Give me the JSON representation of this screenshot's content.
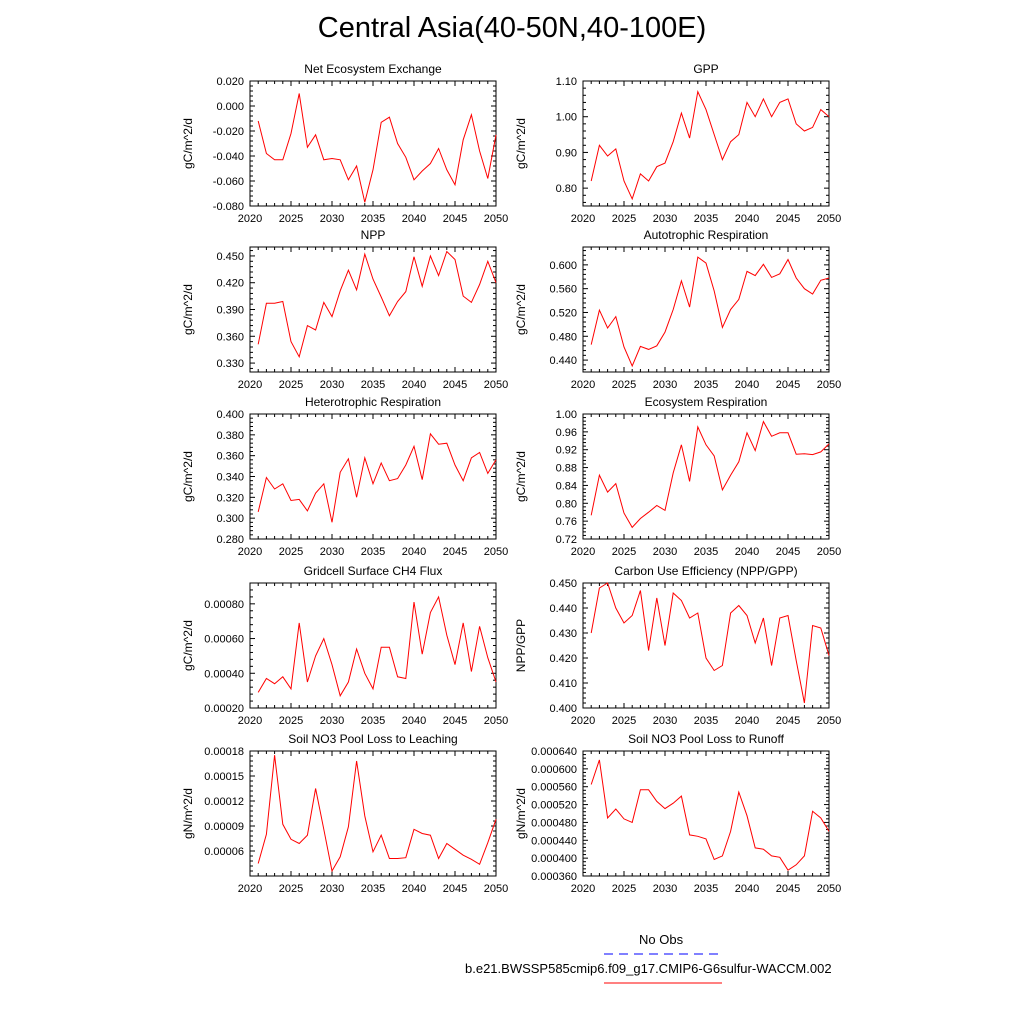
{
  "title": "Central Asia(40-50N,40-100E)",
  "line_color": "#ff0000",
  "obs_color": "#0000ff",
  "legend": {
    "obs_label": "No Obs",
    "model_label": "b.e21.BWSSP585cmip6.f09_g17.CMIP6-G6sulfur-WACCM.002"
  },
  "chart_data": [
    {
      "type": "line",
      "title": "Net Ecosystem Exchange",
      "ylabel": "gC/m^2/d",
      "xlim": [
        2020,
        2050
      ],
      "x_ticks": [
        "2020",
        "2025",
        "2030",
        "2035",
        "2040",
        "2045",
        "2050"
      ],
      "ylim": [
        -0.08,
        0.02
      ],
      "y_ticks": [
        "-0.080",
        "-0.060",
        "-0.040",
        "-0.020",
        "0.000",
        "0.020"
      ],
      "x": [
        2021,
        2022,
        2023,
        2024,
        2025,
        2026,
        2027,
        2028,
        2029,
        2030,
        2031,
        2032,
        2033,
        2034,
        2035,
        2036,
        2037,
        2038,
        2039,
        2040,
        2041,
        2042,
        2043,
        2044,
        2045,
        2046,
        2047,
        2048,
        2049,
        2050
      ],
      "values": [
        -0.012,
        -0.038,
        -0.043,
        -0.043,
        -0.022,
        0.01,
        -0.033,
        -0.023,
        -0.043,
        -0.042,
        -0.043,
        -0.059,
        -0.048,
        -0.077,
        -0.051,
        -0.013,
        -0.009,
        -0.03,
        -0.041,
        -0.059,
        -0.052,
        -0.046,
        -0.034,
        -0.051,
        -0.063,
        -0.027,
        -0.007,
        -0.036,
        -0.058,
        -0.023
      ]
    },
    {
      "type": "line",
      "title": "GPP",
      "ylabel": "gC/m^2/d",
      "xlim": [
        2020,
        2050
      ],
      "x_ticks": [
        "2020",
        "2025",
        "2030",
        "2035",
        "2040",
        "2045",
        "2050"
      ],
      "ylim": [
        0.75,
        1.1
      ],
      "y_ticks": [
        "0.80",
        "0.90",
        "1.00",
        "1.10"
      ],
      "x": [
        2021,
        2022,
        2023,
        2024,
        2025,
        2026,
        2027,
        2028,
        2029,
        2030,
        2031,
        2032,
        2033,
        2034,
        2035,
        2036,
        2037,
        2038,
        2039,
        2040,
        2041,
        2042,
        2043,
        2044,
        2045,
        2046,
        2047,
        2048,
        2049,
        2050
      ],
      "values": [
        0.82,
        0.92,
        0.89,
        0.91,
        0.82,
        0.77,
        0.84,
        0.82,
        0.86,
        0.87,
        0.93,
        1.01,
        0.94,
        1.07,
        1.02,
        0.95,
        0.88,
        0.93,
        0.95,
        1.04,
        1.0,
        1.05,
        1.0,
        1.04,
        1.05,
        0.98,
        0.96,
        0.97,
        1.02,
        1.0
      ]
    },
    {
      "type": "line",
      "title": "NPP",
      "ylabel": "gC/m^2/d",
      "xlim": [
        2020,
        2050
      ],
      "x_ticks": [
        "2020",
        "2025",
        "2030",
        "2035",
        "2040",
        "2045",
        "2050"
      ],
      "ylim": [
        0.32,
        0.46
      ],
      "y_ticks": [
        "0.330",
        "0.360",
        "0.390",
        "0.420",
        "0.450"
      ],
      "x": [
        2021,
        2022,
        2023,
        2024,
        2025,
        2026,
        2027,
        2028,
        2029,
        2030,
        2031,
        2032,
        2033,
        2034,
        2035,
        2036,
        2037,
        2038,
        2039,
        2040,
        2041,
        2042,
        2043,
        2044,
        2045,
        2046,
        2047,
        2048,
        2049,
        2050
      ],
      "values": [
        0.351,
        0.397,
        0.397,
        0.399,
        0.354,
        0.337,
        0.372,
        0.367,
        0.398,
        0.382,
        0.411,
        0.434,
        0.412,
        0.452,
        0.424,
        0.404,
        0.383,
        0.399,
        0.41,
        0.449,
        0.416,
        0.45,
        0.428,
        0.455,
        0.446,
        0.405,
        0.398,
        0.418,
        0.444,
        0.42
      ]
    },
    {
      "type": "line",
      "title": "Autotrophic Respiration",
      "ylabel": "gC/m^2/d",
      "xlim": [
        2020,
        2050
      ],
      "x_ticks": [
        "2020",
        "2025",
        "2030",
        "2035",
        "2040",
        "2045",
        "2050"
      ],
      "ylim": [
        0.42,
        0.63
      ],
      "y_ticks": [
        "0.440",
        "0.480",
        "0.520",
        "0.560",
        "0.600"
      ],
      "x": [
        2021,
        2022,
        2023,
        2024,
        2025,
        2026,
        2027,
        2028,
        2029,
        2030,
        2031,
        2032,
        2033,
        2034,
        2035,
        2036,
        2037,
        2038,
        2039,
        2040,
        2041,
        2042,
        2043,
        2044,
        2045,
        2046,
        2047,
        2048,
        2049,
        2050
      ],
      "values": [
        0.466,
        0.524,
        0.494,
        0.513,
        0.462,
        0.43,
        0.463,
        0.458,
        0.464,
        0.487,
        0.525,
        0.573,
        0.529,
        0.613,
        0.603,
        0.556,
        0.495,
        0.525,
        0.542,
        0.589,
        0.582,
        0.601,
        0.579,
        0.585,
        0.609,
        0.578,
        0.56,
        0.551,
        0.574,
        0.578
      ]
    },
    {
      "type": "line",
      "title": "Heterotrophic Respiration",
      "ylabel": "gC/m^2/d",
      "xlim": [
        2020,
        2050
      ],
      "x_ticks": [
        "2020",
        "2025",
        "2030",
        "2035",
        "2040",
        "2045",
        "2050"
      ],
      "ylim": [
        0.28,
        0.4
      ],
      "y_ticks": [
        "0.280",
        "0.300",
        "0.320",
        "0.340",
        "0.360",
        "0.380",
        "0.400"
      ],
      "x": [
        2021,
        2022,
        2023,
        2024,
        2025,
        2026,
        2027,
        2028,
        2029,
        2030,
        2031,
        2032,
        2033,
        2034,
        2035,
        2036,
        2037,
        2038,
        2039,
        2040,
        2041,
        2042,
        2043,
        2044,
        2045,
        2046,
        2047,
        2048,
        2049,
        2050
      ],
      "values": [
        0.306,
        0.339,
        0.328,
        0.333,
        0.317,
        0.318,
        0.307,
        0.324,
        0.333,
        0.296,
        0.344,
        0.357,
        0.32,
        0.358,
        0.333,
        0.353,
        0.336,
        0.338,
        0.351,
        0.369,
        0.337,
        0.381,
        0.371,
        0.372,
        0.351,
        0.336,
        0.358,
        0.363,
        0.343,
        0.356
      ]
    },
    {
      "type": "line",
      "title": "Ecosystem Respiration",
      "ylabel": "gC/m^2/d",
      "xlim": [
        2020,
        2050
      ],
      "x_ticks": [
        "2020",
        "2025",
        "2030",
        "2035",
        "2040",
        "2045",
        "2050"
      ],
      "ylim": [
        0.72,
        1.0
      ],
      "y_ticks": [
        "0.72",
        "0.76",
        "0.80",
        "0.84",
        "0.88",
        "0.92",
        "0.96",
        "1.00"
      ],
      "x": [
        2021,
        2022,
        2023,
        2024,
        2025,
        2026,
        2027,
        2028,
        2029,
        2030,
        2031,
        2032,
        2033,
        2034,
        2035,
        2036,
        2037,
        2038,
        2039,
        2040,
        2041,
        2042,
        2043,
        2044,
        2045,
        2046,
        2047,
        2048,
        2049,
        2050
      ],
      "values": [
        0.773,
        0.863,
        0.825,
        0.844,
        0.778,
        0.746,
        0.766,
        0.78,
        0.795,
        0.784,
        0.868,
        0.931,
        0.849,
        0.971,
        0.931,
        0.906,
        0.83,
        0.863,
        0.893,
        0.958,
        0.918,
        0.983,
        0.95,
        0.958,
        0.958,
        0.91,
        0.911,
        0.909,
        0.915,
        0.933
      ]
    },
    {
      "type": "line",
      "title": "Gridcell Surface CH4 Flux",
      "ylabel": "gC/m^2/d",
      "xlim": [
        2020,
        2050
      ],
      "x_ticks": [
        "2020",
        "2025",
        "2030",
        "2035",
        "2040",
        "2045",
        "2050"
      ],
      "ylim": [
        0.0002,
        0.00092
      ],
      "y_ticks": [
        "0.00020",
        "0.00040",
        "0.00060",
        "0.00080"
      ],
      "x": [
        2021,
        2022,
        2023,
        2024,
        2025,
        2026,
        2027,
        2028,
        2029,
        2030,
        2031,
        2032,
        2033,
        2034,
        2035,
        2036,
        2037,
        2038,
        2039,
        2040,
        2041,
        2042,
        2043,
        2044,
        2045,
        2046,
        2047,
        2048,
        2049,
        2050
      ],
      "values": [
        0.00029,
        0.00037,
        0.00034,
        0.00038,
        0.00031,
        0.00069,
        0.00035,
        0.0005,
        0.0006,
        0.00045,
        0.00027,
        0.00035,
        0.00054,
        0.0004,
        0.00031,
        0.00055,
        0.00055,
        0.00038,
        0.00037,
        0.00081,
        0.00051,
        0.00075,
        0.00084,
        0.00062,
        0.00045,
        0.00069,
        0.00041,
        0.00067,
        0.00049,
        0.00035
      ]
    },
    {
      "type": "line",
      "title": "Carbon Use Efficiency (NPP/GPP)",
      "ylabel": "NPP/GPP",
      "xlim": [
        2020,
        2050
      ],
      "x_ticks": [
        "2020",
        "2025",
        "2030",
        "2035",
        "2040",
        "2045",
        "2050"
      ],
      "ylim": [
        0.4,
        0.45
      ],
      "y_ticks": [
        "0.400",
        "0.410",
        "0.420",
        "0.430",
        "0.440",
        "0.450"
      ],
      "x": [
        2021,
        2022,
        2023,
        2024,
        2025,
        2026,
        2027,
        2028,
        2029,
        2030,
        2031,
        2032,
        2033,
        2034,
        2035,
        2036,
        2037,
        2038,
        2039,
        2040,
        2041,
        2042,
        2043,
        2044,
        2045,
        2046,
        2047,
        2048,
        2049,
        2050
      ],
      "values": [
        0.43,
        0.448,
        0.45,
        0.44,
        0.434,
        0.437,
        0.447,
        0.423,
        0.444,
        0.425,
        0.446,
        0.443,
        0.436,
        0.438,
        0.42,
        0.415,
        0.417,
        0.438,
        0.441,
        0.437,
        0.426,
        0.436,
        0.417,
        0.436,
        0.437,
        0.419,
        0.402,
        0.433,
        0.432,
        0.421
      ]
    },
    {
      "type": "line",
      "title": "Soil NO3 Pool Loss to Leaching",
      "ylabel": "gN/m^2/d",
      "xlim": [
        2020,
        2050
      ],
      "x_ticks": [
        "2020",
        "2025",
        "2030",
        "2035",
        "2040",
        "2045",
        "2050"
      ],
      "ylim": [
        3e-05,
        0.00018
      ],
      "y_ticks": [
        "0.00006",
        "0.00009",
        "0.00012",
        "0.00015",
        "0.00018"
      ],
      "x": [
        2021,
        2022,
        2023,
        2024,
        2025,
        2026,
        2027,
        2028,
        2029,
        2030,
        2031,
        2032,
        2033,
        2034,
        2035,
        2036,
        2037,
        2038,
        2039,
        2040,
        2041,
        2042,
        2043,
        2044,
        2045,
        2046,
        2047,
        2048,
        2049,
        2050
      ],
      "values": [
        4.5e-05,
        8e-05,
        0.000175,
        9.2e-05,
        7.4e-05,
        6.9e-05,
        7.9e-05,
        0.000135,
        8.6e-05,
        3.6e-05,
        5.3e-05,
        8.9e-05,
        0.000168,
        0.000102,
        5.9e-05,
        7.9e-05,
        5.1e-05,
        5.1e-05,
        5.2e-05,
        8.6e-05,
        8.1e-05,
        7.9e-05,
        5.1e-05,
        6.9e-05,
        6.2e-05,
        5.5e-05,
        5e-05,
        4.4e-05,
        7e-05,
        9.8e-05
      ]
    },
    {
      "type": "line",
      "title": "Soil NO3 Pool Loss to Runoff",
      "ylabel": "gN/m^2/d",
      "xlim": [
        2020,
        2050
      ],
      "x_ticks": [
        "2020",
        "2025",
        "2030",
        "2035",
        "2040",
        "2045",
        "2050"
      ],
      "ylim": [
        0.00036,
        0.00064
      ],
      "y_ticks": [
        "0.000360",
        "0.000400",
        "0.000440",
        "0.000480",
        "0.000520",
        "0.000560",
        "0.000600",
        "0.000640"
      ],
      "x": [
        2021,
        2022,
        2023,
        2024,
        2025,
        2026,
        2027,
        2028,
        2029,
        2030,
        2031,
        2032,
        2033,
        2034,
        2035,
        2036,
        2037,
        2038,
        2039,
        2040,
        2041,
        2042,
        2043,
        2044,
        2045,
        2046,
        2047,
        2048,
        2049,
        2050
      ],
      "values": [
        0.000565,
        0.00062,
        0.00049,
        0.00051,
        0.000488,
        0.00048,
        0.000553,
        0.000553,
        0.000527,
        0.000511,
        0.000523,
        0.000539,
        0.000452,
        0.000449,
        0.000443,
        0.000397,
        0.000405,
        0.00046,
        0.000548,
        0.000495,
        0.000423,
        0.00042,
        0.000405,
        0.000402,
        0.000373,
        0.000385,
        0.000405,
        0.000505,
        0.00049,
        0.00046
      ]
    }
  ]
}
